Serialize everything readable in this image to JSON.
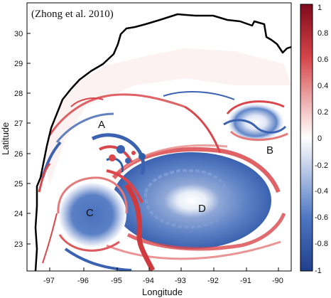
{
  "figure": {
    "credit": "(Zhong et al. 2010)",
    "xlabel": "Longitude",
    "ylabel": "Latitude",
    "x_ticks": [
      "-97",
      "-96",
      "-95",
      "-94",
      "-93",
      "-92",
      "-91",
      "-90"
    ],
    "y_ticks": [
      "30",
      "29",
      "28",
      "27",
      "26",
      "25",
      "24",
      "23"
    ],
    "colorbar_ticks": [
      "1",
      "0.8",
      "0.6",
      "0.4",
      "0.2",
      "0",
      "-0.2",
      "-0.4",
      "-0.6",
      "-0.8",
      "-1"
    ],
    "eddy_labels": [
      "A",
      "B",
      "C",
      "D"
    ],
    "colormap": {
      "positive": "#b2182b",
      "neutral": "#ffffff",
      "negative": "#2c5fa8"
    },
    "coastline_color": "#000000"
  },
  "chart_data": {
    "type": "heatmap",
    "x_range": [
      -97.7,
      -89.4
    ],
    "y_range": [
      22.2,
      30.9
    ],
    "color_range": [
      -1,
      1
    ],
    "xlabel": "Longitude",
    "ylabel": "Latitude",
    "annotations": [
      {
        "label": "A",
        "x": -95.3,
        "y": 26.9
      },
      {
        "label": "B",
        "x": -90.1,
        "y": 26.1
      },
      {
        "label": "C",
        "x": -96.0,
        "y": 24.1
      },
      {
        "label": "D",
        "x": -92.2,
        "y": 24.2
      }
    ],
    "credit": "(Zhong et al. 2010)"
  }
}
